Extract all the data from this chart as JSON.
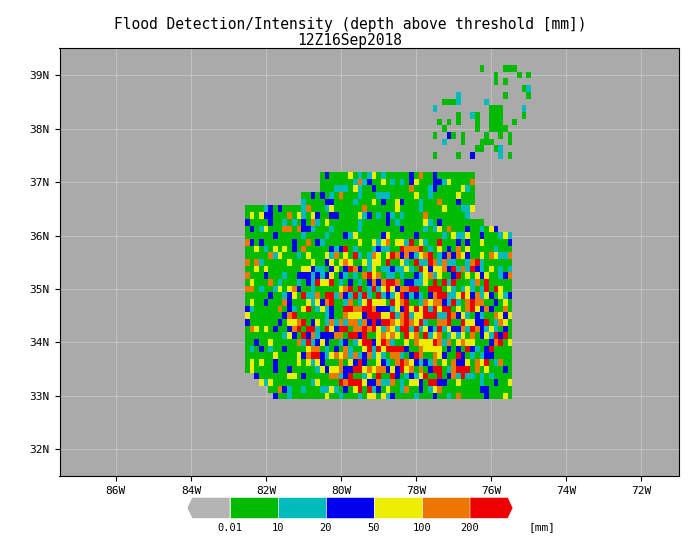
{
  "title_line1": "Flood Detection/Intensity (depth above threshold [mm])",
  "title_line2": "12Z16Sep2018",
  "title_fontsize": 10.5,
  "subtitle_fontsize": 10.5,
  "map_extent": [
    -87.5,
    -71.0,
    31.5,
    39.5
  ],
  "xticks": [
    -86,
    -84,
    -82,
    -80,
    -78,
    -76,
    -74,
    -72
  ],
  "xtick_labels": [
    "86W",
    "84W",
    "82W",
    "80W",
    "78W",
    "76W",
    "74W",
    "72W"
  ],
  "yticks": [
    32,
    33,
    34,
    35,
    36,
    37,
    38,
    39
  ],
  "ytick_labels": [
    "32N",
    "33N",
    "34N",
    "35N",
    "36N",
    "37N",
    "38N",
    "39N"
  ],
  "grid_color": "#cccccc",
  "land_color": "#aaaaaa",
  "ocean_color": "#ffffff",
  "colorbar_levels": [
    0.01,
    10,
    20,
    50,
    100,
    200
  ],
  "colorbar_colors": [
    "#b4b4b4",
    "#00bb00",
    "#00bbbb",
    "#0000ee",
    "#eeee00",
    "#ee7700",
    "#ee0000"
  ],
  "colorbar_label": "[mm]",
  "colorbar_ticks": [
    "0.01",
    "10",
    "20",
    "50",
    "100",
    "200"
  ],
  "fig_width": 7.0,
  "fig_height": 5.38,
  "dpi": 100,
  "flood_seed": 1234,
  "cell_size": 0.125
}
